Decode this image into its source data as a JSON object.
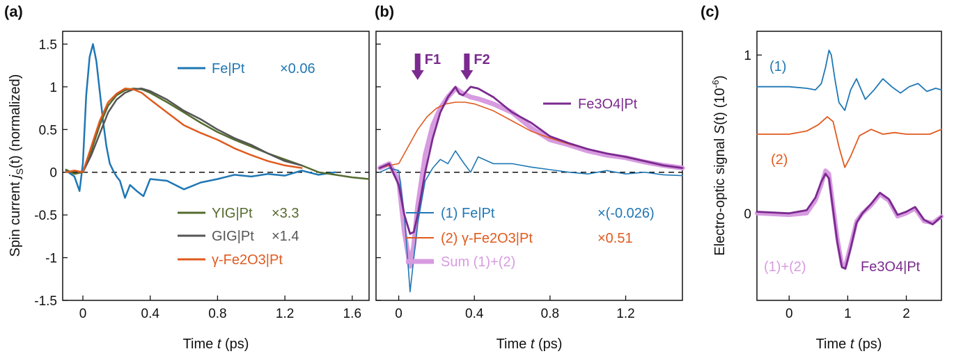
{
  "chart_data": [
    {
      "panel": "(a)",
      "type": "line",
      "xlabel": "Time t (ps)",
      "ylabel": "Spin current j_s(t) (normalized)",
      "xlim": [
        -0.12,
        1.7
      ],
      "ylim": [
        -1.5,
        1.65
      ],
      "xticks": [
        0,
        0.4,
        0.8,
        1.2,
        1.6
      ],
      "xtick_labels": [
        "0",
        "0.4",
        "0.8",
        "1.2",
        "1.6"
      ],
      "yticks": [
        -1.5,
        -1,
        -0.5,
        0,
        0.5,
        1,
        1.5
      ],
      "ytick_labels": [
        "-1.5",
        "-1",
        "-0.5",
        "0",
        "0.5",
        "1",
        "1.5"
      ],
      "zero_line": true,
      "series": [
        {
          "name": "Fe|Pt",
          "factor": "×0.06",
          "color": "#1f77b4",
          "x": [
            -0.1,
            -0.05,
            -0.02,
            0.0,
            0.02,
            0.04,
            0.06,
            0.08,
            0.1,
            0.12,
            0.14,
            0.16,
            0.18,
            0.2,
            0.22,
            0.25,
            0.28,
            0.32,
            0.36,
            0.4,
            0.5,
            0.6,
            0.7,
            0.8,
            0.9,
            1.0,
            1.1,
            1.2,
            1.3,
            1.4,
            1.5
          ],
          "y": [
            0.02,
            -0.05,
            -0.22,
            0.1,
            0.9,
            1.35,
            1.5,
            1.3,
            0.95,
            0.6,
            0.3,
            0.1,
            0.02,
            -0.05,
            -0.1,
            -0.3,
            -0.15,
            -0.22,
            -0.28,
            -0.08,
            -0.1,
            -0.2,
            -0.12,
            -0.08,
            -0.03,
            -0.05,
            -0.02,
            -0.04,
            0.02,
            -0.03,
            0.0
          ]
        },
        {
          "name": "YIG|Pt",
          "factor": "×3.3",
          "color": "#556b2f",
          "x": [
            -0.1,
            -0.05,
            0.0,
            0.05,
            0.1,
            0.15,
            0.2,
            0.25,
            0.3,
            0.35,
            0.4,
            0.5,
            0.6,
            0.7,
            0.8,
            0.9,
            1.0,
            1.1,
            1.2,
            1.3,
            1.4,
            1.5,
            1.6,
            1.7
          ],
          "y": [
            0.03,
            -0.02,
            0.0,
            0.25,
            0.55,
            0.78,
            0.9,
            0.96,
            0.98,
            0.97,
            0.93,
            0.82,
            0.7,
            0.58,
            0.47,
            0.38,
            0.3,
            0.22,
            0.15,
            0.08,
            0.0,
            -0.03,
            -0.06,
            -0.08
          ]
        },
        {
          "name": "GIG|Pt",
          "factor": "×1.4",
          "color": "#555555",
          "x": [
            -0.1,
            -0.05,
            0.0,
            0.05,
            0.1,
            0.15,
            0.2,
            0.25,
            0.3,
            0.35,
            0.4,
            0.5,
            0.6,
            0.7,
            0.8,
            0.9,
            1.0,
            1.1,
            1.2,
            1.3
          ],
          "y": [
            0.0,
            0.02,
            0.0,
            0.2,
            0.45,
            0.7,
            0.85,
            0.93,
            0.97,
            0.98,
            0.95,
            0.85,
            0.72,
            0.62,
            0.5,
            0.4,
            0.32,
            0.22,
            0.13,
            0.08
          ]
        },
        {
          "name": "γ-Fe2O3|Pt",
          "color": "#e05a1e",
          "x": [
            -0.1,
            -0.05,
            0.0,
            0.05,
            0.1,
            0.15,
            0.2,
            0.25,
            0.3,
            0.35,
            0.4,
            0.5,
            0.6,
            0.7,
            0.8,
            0.9,
            1.0,
            1.1,
            1.2,
            1.3
          ],
          "y": [
            0.0,
            0.02,
            0.0,
            0.3,
            0.6,
            0.82,
            0.92,
            0.98,
            0.97,
            0.93,
            0.85,
            0.7,
            0.55,
            0.46,
            0.38,
            0.28,
            0.2,
            0.13,
            0.08,
            0.05
          ]
        }
      ],
      "legend": [
        {
          "label_main": "Fe|Pt",
          "factor": "×0.06"
        },
        {
          "label_main": "YIG|Pt",
          "factor": "×3.3"
        },
        {
          "label_main": "GIG|Pt",
          "factor": "×1.4"
        },
        {
          "label_main": "γ-Fe2O3|Pt",
          "factor": ""
        }
      ]
    },
    {
      "panel": "(b)",
      "type": "line",
      "xlabel": "Time t (ps)",
      "xlim": [
        -0.12,
        1.5
      ],
      "ylim": [
        -1.5,
        1.65
      ],
      "xticks": [
        0,
        0.4,
        0.8,
        1.2
      ],
      "xtick_labels": [
        "0",
        "0.4",
        "0.8",
        "1.2"
      ],
      "zero_line": true,
      "annotations": [
        "F1",
        "F2"
      ],
      "annotation_x": [
        0.1,
        0.36
      ],
      "series": [
        {
          "name": "Sum (1)+(2)",
          "color": "#d79be0",
          "x": [
            -0.1,
            -0.05,
            0.0,
            0.03,
            0.06,
            0.08,
            0.1,
            0.14,
            0.18,
            0.22,
            0.26,
            0.3,
            0.34,
            0.38,
            0.42,
            0.5,
            0.6,
            0.7,
            0.8,
            0.9,
            1.0,
            1.1,
            1.2,
            1.3,
            1.4,
            1.5
          ],
          "y": [
            0.05,
            0.1,
            -0.1,
            -0.7,
            -1.1,
            -0.85,
            -0.4,
            0.2,
            0.55,
            0.75,
            0.88,
            0.98,
            0.92,
            0.88,
            0.86,
            0.8,
            0.7,
            0.52,
            0.38,
            0.32,
            0.25,
            0.2,
            0.17,
            0.12,
            0.08,
            0.05
          ]
        },
        {
          "name": "(1) Fe|Pt",
          "factor": "×(-0.026)",
          "color": "#1f77b4",
          "x": [
            -0.1,
            -0.05,
            0.0,
            0.03,
            0.06,
            0.08,
            0.1,
            0.14,
            0.18,
            0.22,
            0.26,
            0.3,
            0.34,
            0.38,
            0.42,
            0.5,
            0.6,
            0.7,
            0.8,
            0.9,
            1.0,
            1.1,
            1.2,
            1.3,
            1.4,
            1.5
          ],
          "y": [
            0.0,
            0.05,
            0.02,
            -0.5,
            -1.4,
            -1.0,
            -0.6,
            -0.1,
            0.05,
            0.15,
            0.1,
            0.25,
            0.12,
            0.0,
            0.18,
            0.1,
            0.1,
            0.06,
            0.03,
            0.0,
            -0.02,
            0.02,
            -0.02,
            0.0,
            -0.03,
            -0.04
          ]
        },
        {
          "name": "(2) γ-Fe2O3|Pt",
          "factor": "×0.51",
          "color": "#e05a1e",
          "x": [
            -0.1,
            -0.05,
            0.0,
            0.05,
            0.1,
            0.15,
            0.2,
            0.25,
            0.3,
            0.35,
            0.4,
            0.5,
            0.6,
            0.7,
            0.8,
            0.9,
            1.0,
            1.1,
            1.2,
            1.3,
            1.4,
            1.5
          ],
          "y": [
            0.05,
            0.08,
            0.1,
            0.3,
            0.5,
            0.65,
            0.75,
            0.8,
            0.82,
            0.82,
            0.8,
            0.72,
            0.6,
            0.48,
            0.4,
            0.33,
            0.27,
            0.22,
            0.18,
            0.13,
            0.08,
            0.05
          ]
        },
        {
          "name": "Fe3O4|Pt",
          "color": "#7b2a8f",
          "x": [
            -0.1,
            -0.05,
            0.0,
            0.03,
            0.06,
            0.08,
            0.1,
            0.14,
            0.18,
            0.22,
            0.26,
            0.3,
            0.32,
            0.34,
            0.38,
            0.42,
            0.5,
            0.6,
            0.7,
            0.8,
            0.9,
            1.0,
            1.1,
            1.2,
            1.3,
            1.4,
            1.5
          ],
          "y": [
            0.05,
            0.1,
            -0.15,
            -0.5,
            -0.72,
            -0.7,
            -0.5,
            0.0,
            0.4,
            0.7,
            0.88,
            1.0,
            0.92,
            0.9,
            1.0,
            0.98,
            0.88,
            0.7,
            0.58,
            0.42,
            0.34,
            0.27,
            0.22,
            0.18,
            0.13,
            0.08,
            0.05
          ]
        }
      ],
      "legend": [
        {
          "label_main": "(1) Fe|Pt",
          "factor": "×(-0.026)"
        },
        {
          "label_main": "(2) γ-Fe2O3|Pt",
          "factor": "×0.51"
        },
        {
          "label_main": "Sum (1)+(2)",
          "factor": ""
        }
      ],
      "label_top": "Fe3O4|Pt"
    },
    {
      "panel": "(c)",
      "type": "line",
      "xlabel": "Time t (ps)",
      "ylabel": "Electro-optic signal S(t) (10^-6)",
      "xlim": [
        -0.55,
        2.6
      ],
      "ylim": [
        -0.55,
        1.15
      ],
      "xticks": [
        0,
        1,
        2
      ],
      "xtick_labels": [
        "0",
        "1",
        "2"
      ],
      "yticks": [
        0,
        1
      ],
      "ytick_labels": [
        "0",
        "1"
      ],
      "series": [
        {
          "name": "(1)",
          "color": "#1f77b4",
          "x": [
            -0.55,
            0.0,
            0.3,
            0.45,
            0.55,
            0.62,
            0.68,
            0.72,
            0.78,
            0.85,
            0.95,
            1.05,
            1.15,
            1.3,
            1.45,
            1.6,
            1.75,
            1.9,
            2.05,
            2.2,
            2.35,
            2.5,
            2.6
          ],
          "y": [
            0.8,
            0.8,
            0.79,
            0.78,
            0.82,
            0.92,
            1.03,
            1.0,
            0.85,
            0.7,
            0.65,
            0.78,
            0.85,
            0.72,
            0.78,
            0.85,
            0.8,
            0.76,
            0.8,
            0.82,
            0.77,
            0.79,
            0.78
          ]
        },
        {
          "name": "(2)",
          "color": "#e05a1e",
          "x": [
            -0.55,
            0.0,
            0.3,
            0.5,
            0.65,
            0.75,
            0.85,
            0.95,
            1.05,
            1.2,
            1.4,
            1.6,
            1.8,
            2.0,
            2.2,
            2.4,
            2.6
          ],
          "y": [
            0.5,
            0.5,
            0.52,
            0.56,
            0.61,
            0.58,
            0.42,
            0.29,
            0.36,
            0.49,
            0.53,
            0.5,
            0.51,
            0.5,
            0.5,
            0.5,
            0.53
          ]
        },
        {
          "name": "(1)+(2)",
          "color": "#d79be0",
          "x": [
            -0.55,
            0.0,
            0.3,
            0.45,
            0.55,
            0.62,
            0.68,
            0.75,
            0.82,
            0.9,
            0.96,
            1.05,
            1.15,
            1.25,
            1.4,
            1.55,
            1.7,
            1.85,
            2.0,
            2.15,
            2.3,
            2.45,
            2.6
          ],
          "y": [
            0.0,
            -0.01,
            0.0,
            0.08,
            0.18,
            0.27,
            0.25,
            0.05,
            -0.15,
            -0.32,
            -0.33,
            -0.2,
            -0.05,
            0.0,
            0.05,
            0.12,
            0.08,
            -0.02,
            0.0,
            0.03,
            -0.05,
            -0.06,
            -0.02
          ]
        },
        {
          "name": "Fe3O4|Pt",
          "color": "#7b2a8f",
          "x": [
            -0.55,
            0.0,
            0.3,
            0.45,
            0.55,
            0.62,
            0.68,
            0.75,
            0.82,
            0.9,
            0.96,
            1.05,
            1.15,
            1.25,
            1.4,
            1.55,
            1.7,
            1.85,
            2.0,
            2.15,
            2.3,
            2.45,
            2.6
          ],
          "y": [
            0.01,
            0.0,
            0.02,
            0.1,
            0.2,
            0.25,
            0.22,
            0.02,
            -0.18,
            -0.34,
            -0.35,
            -0.22,
            -0.06,
            0.0,
            0.06,
            0.13,
            0.09,
            -0.01,
            0.01,
            0.04,
            -0.04,
            -0.07,
            -0.02
          ]
        }
      ],
      "curve_labels": [
        "(1)",
        "(2)",
        "(1)+(2)",
        "Fe3O4|Pt"
      ]
    }
  ],
  "panel_labels": [
    "(a)",
    "(b)",
    "(c)"
  ],
  "axis_text": {
    "time_label": "Time",
    "time_var": "t",
    "time_unit": "(ps)",
    "ylabel_a_main": "Spin current",
    "ylabel_a_var": "j",
    "ylabel_a_sub": "S",
    "ylabel_a_arg": "(t)",
    "ylabel_a_unit": "(normalized)",
    "ylabel_c_main": "Electro-optic signal",
    "ylabel_c_var": "S",
    "ylabel_c_arg": "(t)",
    "ylabel_c_unit": "(10",
    "ylabel_c_exp": "-6",
    "ylabel_c_close": ")"
  },
  "colors": {
    "fe": "#1f77b4",
    "yig": "#556b2f",
    "gig": "#555555",
    "fe2o3": "#e05a1e",
    "fe3o4": "#7b2a8f",
    "sum": "#d79be0"
  }
}
